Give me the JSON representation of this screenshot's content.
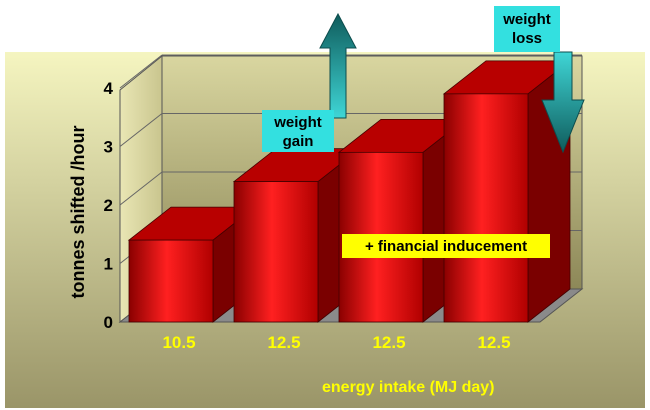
{
  "chart_data": {
    "type": "bar",
    "title": "",
    "xlabel": "energy intake (MJ  day)",
    "ylabel": "tonnes shifted /hour",
    "ylim": [
      0,
      4
    ],
    "yticks": [
      "0",
      "1",
      "2",
      "3",
      "4"
    ],
    "categories": [
      "10.5",
      "12.5",
      "12.5",
      "12.5"
    ],
    "values": [
      1.4,
      2.4,
      2.9,
      3.9
    ],
    "grid": true,
    "style": "3d",
    "annotations": {
      "gain": "weight\ngain",
      "loss": "weight\nloss",
      "inducement": "+ financial inducement"
    }
  },
  "colors": {
    "background_top": "#f5f5c0",
    "background_bottom": "#9a9568",
    "bar_front": "#e00000",
    "bar_side": "#7a0000",
    "bar_top": "#b80000",
    "tick_label": "#ffff00",
    "axis_label": "#ffff00",
    "label_box": "#33e0e0",
    "arrow": "#1e7a7a",
    "inducement_box": "#ffff00"
  }
}
